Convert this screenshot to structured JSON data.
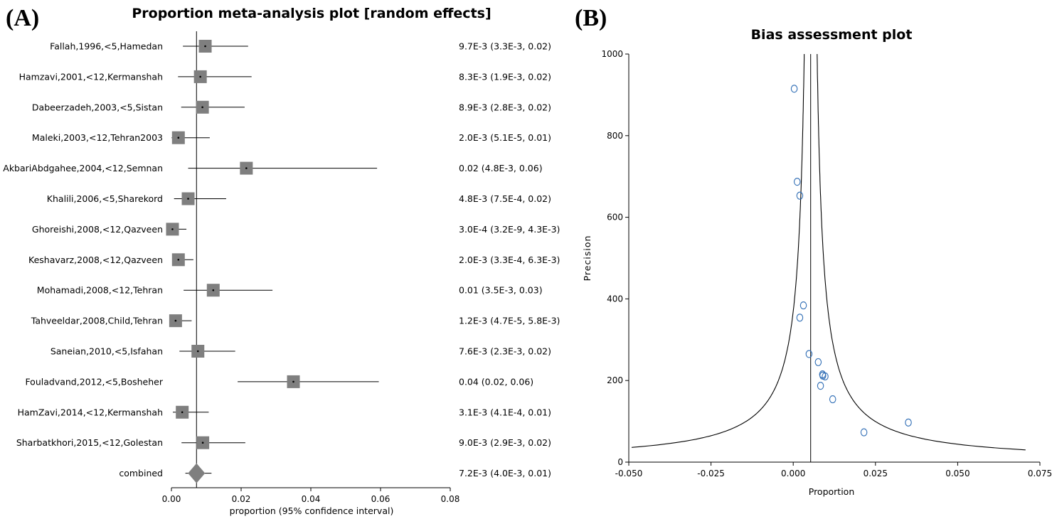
{
  "panel_a": {
    "letter": "(A)",
    "title": "Proportion meta-analysis plot [random effects]"
  },
  "panel_b": {
    "letter": "(B)",
    "title": "Bias assessment plot"
  },
  "chart_data": [
    {
      "type": "forest",
      "title": "Proportion meta-analysis plot [random effects]",
      "xlabel": "proportion (95% confidence interval)",
      "xlim": [
        0,
        0.08
      ],
      "xticks": [
        "0.00",
        "0.02",
        "0.04",
        "0.06",
        "0.08"
      ],
      "pooled_line": 0.0072,
      "studies": [
        {
          "label": "Fallah,1996,<5,Hamedan",
          "est": 0.0097,
          "lo": 0.0033,
          "hi": 0.022,
          "text": "9.7E-3 (3.3E-3, 0.02)"
        },
        {
          "label": "Hamzavi,2001,<12,Kermanshah",
          "est": 0.0083,
          "lo": 0.0019,
          "hi": 0.023,
          "text": "8.3E-3 (1.9E-3, 0.02)"
        },
        {
          "label": "Dabeerzadeh,2003,<5,Sistan",
          "est": 0.0089,
          "lo": 0.0028,
          "hi": 0.021,
          "text": "8.9E-3 (2.8E-3, 0.02)"
        },
        {
          "label": "Maleki,2003,<12,Tehran2003",
          "est": 0.002,
          "lo": 5.1e-05,
          "hi": 0.011,
          "text": "2.0E-3 (5.1E-5, 0.01)"
        },
        {
          "label": "AkbariAbdgahee,2004,<12,Semnan",
          "est": 0.0215,
          "lo": 0.0048,
          "hi": 0.059,
          "text": "0.02 (4.8E-3, 0.06)"
        },
        {
          "label": "Khalili,2006,<5,Sharekord",
          "est": 0.0048,
          "lo": 0.00075,
          "hi": 0.0157,
          "text": "4.8E-3 (7.5E-4, 0.02)"
        },
        {
          "label": "Ghoreishi,2008,<12,Qazveen",
          "est": 0.0003,
          "lo": 3.2e-09,
          "hi": 0.0043,
          "text": "3.0E-4 (3.2E-9, 4.3E-3)"
        },
        {
          "label": "Keshavarz,2008,<12,Qazveen",
          "est": 0.002,
          "lo": 0.00033,
          "hi": 0.0063,
          "text": "2.0E-3 (3.3E-4, 6.3E-3)"
        },
        {
          "label": "Mohamadi,2008,<12,Tehran",
          "est": 0.012,
          "lo": 0.0035,
          "hi": 0.029,
          "text": "0.01 (3.5E-3, 0.03)"
        },
        {
          "label": "Tahveeldar,2008,Child,Tehran",
          "est": 0.0012,
          "lo": 4.7e-05,
          "hi": 0.0058,
          "text": "1.2E-3 (4.7E-5, 5.8E-3)"
        },
        {
          "label": "Saneian,2010,<5,Isfahan",
          "est": 0.0076,
          "lo": 0.0023,
          "hi": 0.0183,
          "text": "7.6E-3 (2.3E-3, 0.02)"
        },
        {
          "label": "Fouladvand,2012,<5,Bosheher",
          "est": 0.035,
          "lo": 0.019,
          "hi": 0.0595,
          "text": "0.04 (0.02, 0.06)"
        },
        {
          "label": "HamZavi,2014,<12,Kermanshah",
          "est": 0.0031,
          "lo": 0.00041,
          "hi": 0.0107,
          "text": "3.1E-3 (4.1E-4, 0.01)"
        },
        {
          "label": "Sharbatkhori,2015,<12,Golestan",
          "est": 0.009,
          "lo": 0.0029,
          "hi": 0.0212,
          "text": "9.0E-3 (2.9E-3, 0.02)"
        }
      ],
      "combined": {
        "label": "combined",
        "est": 0.0072,
        "lo": 0.004,
        "hi": 0.0115,
        "text": "7.2E-3 (4.0E-3, 0.01)"
      }
    },
    {
      "type": "scatter",
      "title": "Bias assessment plot",
      "xlabel": "Proportion",
      "ylabel": "Precision",
      "xlim": [
        -0.05,
        0.075
      ],
      "ylim": [
        0,
        1000
      ],
      "xticks": [
        "-0.050",
        "-0.025",
        "0.000",
        "0.025",
        "0.050",
        "0.075"
      ],
      "yticks": [
        "0",
        "200",
        "400",
        "600",
        "800",
        "1000"
      ],
      "pooled_line": 0.0053,
      "points": [
        {
          "x": 0.0003,
          "y": 915
        },
        {
          "x": 0.0012,
          "y": 687
        },
        {
          "x": 0.002,
          "y": 653
        },
        {
          "x": 0.0031,
          "y": 384
        },
        {
          "x": 0.002,
          "y": 354
        },
        {
          "x": 0.0048,
          "y": 265
        },
        {
          "x": 0.0076,
          "y": 245
        },
        {
          "x": 0.0089,
          "y": 215
        },
        {
          "x": 0.009,
          "y": 212
        },
        {
          "x": 0.0097,
          "y": 210
        },
        {
          "x": 0.0083,
          "y": 187
        },
        {
          "x": 0.012,
          "y": 154
        },
        {
          "x": 0.0215,
          "y": 73
        },
        {
          "x": 0.035,
          "y": 97
        }
      ]
    }
  ]
}
